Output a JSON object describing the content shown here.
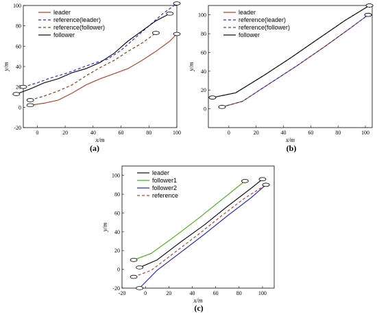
{
  "chart_data": [
    {
      "type": "line",
      "panel_label": "(a)",
      "xlabel": "x/m",
      "ylabel": "y/m",
      "xlim": [
        -10,
        100
      ],
      "ylim": [
        -20,
        100
      ],
      "xticks": [
        "0",
        "20",
        "40",
        "60",
        "80",
        "100"
      ],
      "yticks": [
        "-20",
        "0",
        "20",
        "40",
        "60",
        "80",
        "100"
      ],
      "legend_position": "top-left",
      "series": [
        {
          "name": "leader",
          "color": "#b5442a",
          "dash": "solid",
          "x": [
            -5,
            5,
            15,
            25,
            35,
            45,
            55,
            65,
            75,
            85,
            95,
            100
          ],
          "y": [
            2,
            4,
            7,
            14,
            22,
            28,
            33,
            38,
            46,
            55,
            65,
            72
          ]
        },
        {
          "name": "reference(leader)",
          "color": "#2b2bd6",
          "dash": "dash",
          "x": [
            -10,
            0,
            10,
            20,
            30,
            40,
            50,
            60,
            70,
            80,
            90,
            100
          ],
          "y": [
            20,
            24,
            29,
            33,
            38,
            43,
            47,
            56,
            68,
            80,
            92,
            102
          ]
        },
        {
          "name": "reference(follower)",
          "color": "#8b3a1a",
          "dash": "dash",
          "x": [
            -5,
            5,
            15,
            25,
            35,
            45,
            55,
            65,
            75,
            85
          ],
          "y": [
            7,
            11,
            16,
            22,
            31,
            39,
            46,
            55,
            63,
            73
          ]
        },
        {
          "name": "follower",
          "color": "#111111",
          "dash": "solid",
          "x": [
            -15,
            -5,
            5,
            15,
            25,
            35,
            45,
            55,
            65,
            75,
            85,
            95
          ],
          "y": [
            13,
            18,
            24,
            28,
            34,
            38,
            44,
            53,
            65,
            75,
            85,
            92
          ]
        }
      ]
    },
    {
      "type": "line",
      "panel_label": "(b)",
      "xlabel": "x/m",
      "ylabel": "y/m",
      "xlim": [
        -15,
        105
      ],
      "ylim": [
        -20,
        110
      ],
      "xticks": [
        "0",
        "20",
        "40",
        "60",
        "80",
        "100"
      ],
      "yticks": [
        "0",
        "20",
        "40",
        "60",
        "80",
        "100"
      ],
      "legend_position": "top-left",
      "series": [
        {
          "name": "leader",
          "color": "#b5442a",
          "dash": "solid",
          "x": [
            -5,
            10,
            30,
            50,
            70,
            90,
            102
          ],
          "y": [
            2,
            8,
            27,
            46,
            66,
            87,
            100
          ]
        },
        {
          "name": "reference(leader)",
          "color": "#2b2bd6",
          "dash": "dash",
          "x": [
            -5,
            10,
            30,
            50,
            70,
            90,
            102
          ],
          "y": [
            2,
            8,
            27,
            46,
            66,
            87,
            100
          ]
        },
        {
          "name": "reference(follower)",
          "color": "#8b3a1a",
          "dash": "dash",
          "x": [
            -12,
            5,
            25,
            45,
            65,
            85,
            103
          ],
          "y": [
            12,
            17,
            35,
            54,
            74,
            94,
            110
          ]
        },
        {
          "name": "follower",
          "color": "#111111",
          "dash": "solid",
          "x": [
            -12,
            5,
            25,
            45,
            65,
            85,
            103
          ],
          "y": [
            12,
            17,
            35,
            54,
            74,
            94,
            110
          ]
        }
      ]
    },
    {
      "type": "line",
      "panel_label": "(c)",
      "xlabel": "x/m",
      "ylabel": "y/m",
      "xlim": [
        -20,
        110
      ],
      "ylim": [
        -20,
        110
      ],
      "xticks": [
        "-20",
        "0",
        "20",
        "40",
        "60",
        "80",
        "100"
      ],
      "yticks": [
        "-20",
        "0",
        "20",
        "40",
        "60",
        "80",
        "100"
      ],
      "legend_position": "top-left",
      "series": [
        {
          "name": "leader",
          "color": "#111111",
          "dash": "solid",
          "x": [
            -5,
            10,
            30,
            50,
            70,
            90,
            100
          ],
          "y": [
            2,
            10,
            29,
            47,
            67,
            86,
            96
          ]
        },
        {
          "name": "follower1",
          "color": "#4caf1a",
          "dash": "solid",
          "x": [
            -10,
            5,
            25,
            45,
            65,
            85
          ],
          "y": [
            10,
            17,
            35,
            54,
            74,
            94
          ]
        },
        {
          "name": "follower2",
          "color": "#2b2bd6",
          "dash": "solid",
          "x": [
            -5,
            10,
            30,
            50,
            70,
            90,
            103
          ],
          "y": [
            -20,
            -1,
            18,
            37,
            57,
            76,
            90
          ]
        },
        {
          "name": "reference",
          "color": "#b5442a",
          "dash": "dash",
          "x": [
            -10,
            5,
            25,
            45,
            65,
            85,
            103
          ],
          "y": [
            -8,
            -1,
            18,
            37,
            57,
            76,
            90
          ]
        }
      ]
    }
  ]
}
